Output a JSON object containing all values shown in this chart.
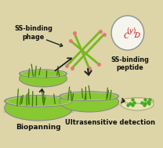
{
  "bg": "#ddd4a8",
  "colors": {
    "dish_green": "#88c832",
    "dish_green_dark": "#5a9010",
    "dish_green_light": "#aae040",
    "dish_rim_outer": "#909090",
    "dish_rim_inner": "#c8c8b0",
    "dish_yellow": "#e8e4b8",
    "dish_yellow_rim": "#b0a870",
    "phage_green": "#78b820",
    "phage_pink": "#e07878",
    "dot_green": "#44aa22",
    "arrow_col": "#222222",
    "text_col": "#111111",
    "peptide_circle": "#909090",
    "peptide_text": "#cc2020",
    "grass_dark": "#3a7808",
    "grass_med": "#559010"
  },
  "labels": {
    "phage": "SS-binding\nphage",
    "peptide": "SS-binding\npeptide",
    "biopanning": "Biopanning",
    "ultra": "Ultrasensitive detection"
  }
}
